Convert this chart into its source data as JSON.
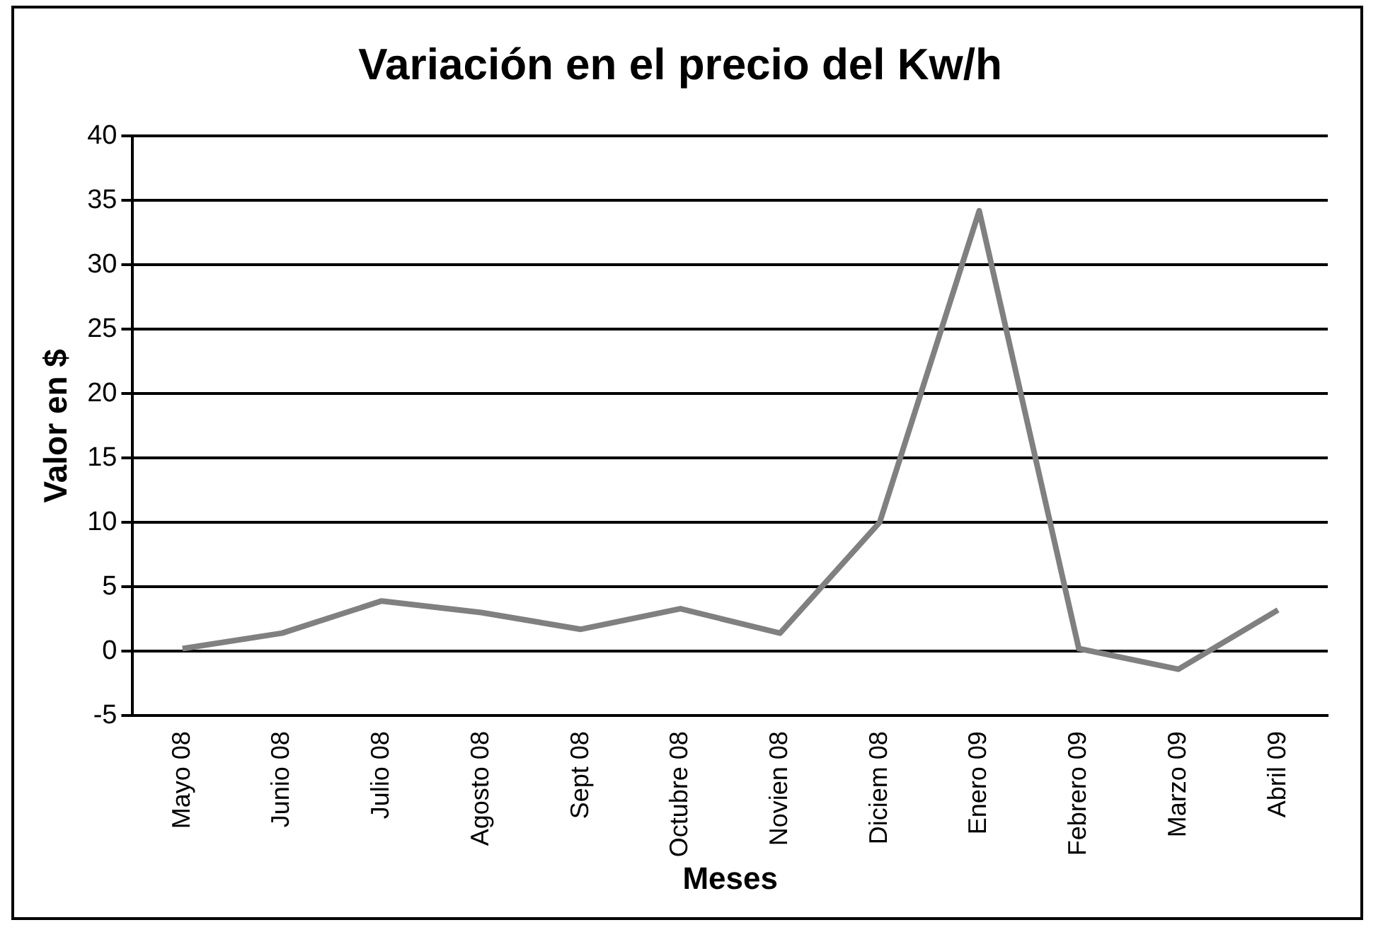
{
  "chart_data": {
    "type": "line",
    "title": "Variación en el precio del Kw/h",
    "xlabel": "Meses",
    "ylabel": "Valor en $",
    "categories": [
      "Mayo 08",
      "Junio 08",
      "Julio 08",
      "Agosto 08",
      "Sept 08",
      "Octubre 08",
      "Novien 08",
      "Diciem 08",
      "Enero 09",
      "Febrero 09",
      "Marzo 09",
      "Abril 09"
    ],
    "series": [
      {
        "color": "#808080",
        "values": [
          0.2,
          1.4,
          3.9,
          3,
          1.7,
          3.3,
          1.4,
          10,
          34.2,
          0.2,
          -1.4,
          3.2
        ]
      }
    ],
    "ylim": [
      -5,
      40
    ],
    "yticks": [
      -5,
      0,
      5,
      10,
      15,
      20,
      25,
      30,
      35,
      40
    ],
    "grid": "y",
    "legend": false,
    "marker": "none",
    "line_style": "solid"
  }
}
